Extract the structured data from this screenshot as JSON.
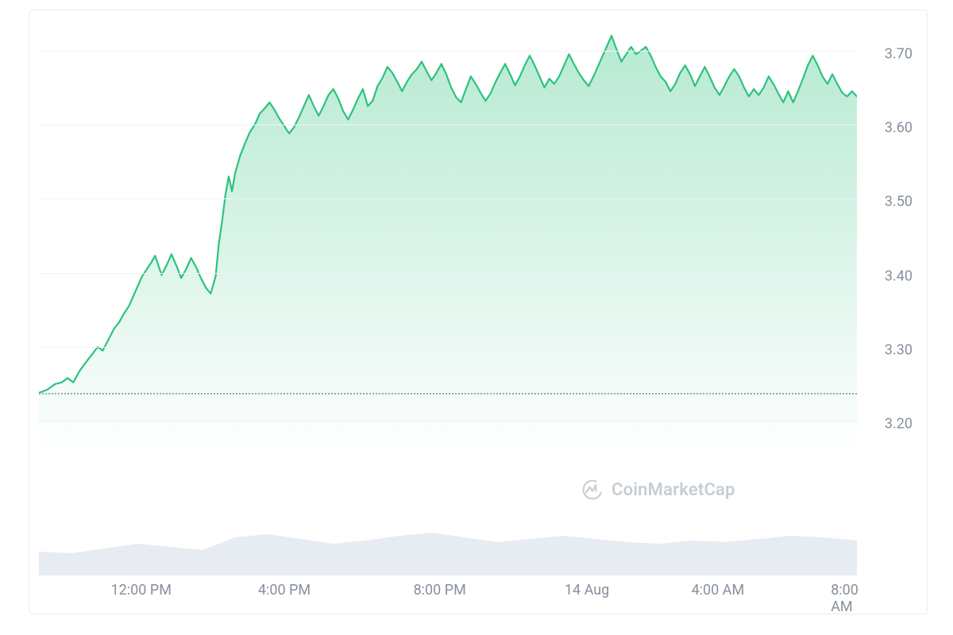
{
  "chart": {
    "type": "area",
    "background_color": "#ffffff",
    "border_color": "#e9ecef",
    "grid_color": "#f1f3f5",
    "line_color": "#2ec27e",
    "line_width": 2.2,
    "fill_top_color": "#2ec27e",
    "fill_top_opacity": 0.35,
    "fill_bottom_opacity": 0.0,
    "axis_label_color": "#86909c",
    "axis_label_fontsize": 18,
    "dotted_line_color": "#9aa3ad",
    "dotted_line_value": 3.238,
    "ylim": [
      3.15,
      3.75
    ],
    "yticks": [
      3.2,
      3.3,
      3.4,
      3.5,
      3.6,
      3.7
    ],
    "ytick_labels": [
      "3.20",
      "3.30",
      "3.40",
      "3.50",
      "3.60",
      "3.70"
    ],
    "xticks": [
      0.125,
      0.3,
      0.49,
      0.67,
      0.83,
      0.985
    ],
    "xtick_labels": [
      "12:00 PM",
      "4:00 PM",
      "8:00 PM",
      "14 Aug",
      "4:00 AM",
      "8:00 AM"
    ],
    "price_series": [
      [
        0.0,
        3.238
      ],
      [
        0.01,
        3.242
      ],
      [
        0.02,
        3.25
      ],
      [
        0.028,
        3.252
      ],
      [
        0.035,
        3.258
      ],
      [
        0.042,
        3.252
      ],
      [
        0.05,
        3.268
      ],
      [
        0.058,
        3.28
      ],
      [
        0.065,
        3.29
      ],
      [
        0.072,
        3.3
      ],
      [
        0.078,
        3.295
      ],
      [
        0.085,
        3.31
      ],
      [
        0.092,
        3.325
      ],
      [
        0.098,
        3.333
      ],
      [
        0.104,
        3.345
      ],
      [
        0.11,
        3.355
      ],
      [
        0.116,
        3.37
      ],
      [
        0.12,
        3.38
      ],
      [
        0.126,
        3.395
      ],
      [
        0.132,
        3.405
      ],
      [
        0.138,
        3.415
      ],
      [
        0.142,
        3.423
      ],
      [
        0.146,
        3.41
      ],
      [
        0.15,
        3.397
      ],
      [
        0.156,
        3.41
      ],
      [
        0.162,
        3.425
      ],
      [
        0.168,
        3.41
      ],
      [
        0.174,
        3.393
      ],
      [
        0.18,
        3.405
      ],
      [
        0.186,
        3.42
      ],
      [
        0.192,
        3.408
      ],
      [
        0.198,
        3.393
      ],
      [
        0.204,
        3.38
      ],
      [
        0.21,
        3.372
      ],
      [
        0.216,
        3.395
      ],
      [
        0.22,
        3.44
      ],
      [
        0.224,
        3.47
      ],
      [
        0.228,
        3.505
      ],
      [
        0.232,
        3.53
      ],
      [
        0.236,
        3.51
      ],
      [
        0.24,
        3.535
      ],
      [
        0.246,
        3.558
      ],
      [
        0.252,
        3.575
      ],
      [
        0.258,
        3.59
      ],
      [
        0.264,
        3.6
      ],
      [
        0.27,
        3.615
      ],
      [
        0.276,
        3.622
      ],
      [
        0.282,
        3.63
      ],
      [
        0.288,
        3.62
      ],
      [
        0.294,
        3.608
      ],
      [
        0.3,
        3.598
      ],
      [
        0.306,
        3.588
      ],
      [
        0.312,
        3.597
      ],
      [
        0.318,
        3.61
      ],
      [
        0.324,
        3.625
      ],
      [
        0.33,
        3.64
      ],
      [
        0.336,
        3.625
      ],
      [
        0.342,
        3.612
      ],
      [
        0.348,
        3.625
      ],
      [
        0.354,
        3.64
      ],
      [
        0.36,
        3.648
      ],
      [
        0.366,
        3.635
      ],
      [
        0.372,
        3.618
      ],
      [
        0.378,
        3.607
      ],
      [
        0.384,
        3.62
      ],
      [
        0.39,
        3.635
      ],
      [
        0.396,
        3.648
      ],
      [
        0.402,
        3.625
      ],
      [
        0.408,
        3.632
      ],
      [
        0.414,
        3.652
      ],
      [
        0.42,
        3.663
      ],
      [
        0.426,
        3.678
      ],
      [
        0.432,
        3.67
      ],
      [
        0.438,
        3.658
      ],
      [
        0.444,
        3.645
      ],
      [
        0.45,
        3.658
      ],
      [
        0.456,
        3.668
      ],
      [
        0.462,
        3.675
      ],
      [
        0.468,
        3.685
      ],
      [
        0.474,
        3.672
      ],
      [
        0.48,
        3.66
      ],
      [
        0.486,
        3.67
      ],
      [
        0.492,
        3.682
      ],
      [
        0.498,
        3.668
      ],
      [
        0.504,
        3.65
      ],
      [
        0.51,
        3.637
      ],
      [
        0.516,
        3.63
      ],
      [
        0.522,
        3.648
      ],
      [
        0.528,
        3.665
      ],
      [
        0.534,
        3.655
      ],
      [
        0.54,
        3.643
      ],
      [
        0.546,
        3.632
      ],
      [
        0.552,
        3.642
      ],
      [
        0.558,
        3.657
      ],
      [
        0.564,
        3.67
      ],
      [
        0.57,
        3.682
      ],
      [
        0.576,
        3.668
      ],
      [
        0.582,
        3.653
      ],
      [
        0.588,
        3.665
      ],
      [
        0.594,
        3.68
      ],
      [
        0.6,
        3.693
      ],
      [
        0.606,
        3.68
      ],
      [
        0.612,
        3.665
      ],
      [
        0.618,
        3.65
      ],
      [
        0.624,
        3.662
      ],
      [
        0.63,
        3.655
      ],
      [
        0.636,
        3.665
      ],
      [
        0.642,
        3.68
      ],
      [
        0.648,
        3.695
      ],
      [
        0.654,
        3.682
      ],
      [
        0.66,
        3.67
      ],
      [
        0.666,
        3.66
      ],
      [
        0.672,
        3.652
      ],
      [
        0.678,
        3.665
      ],
      [
        0.684,
        3.68
      ],
      [
        0.69,
        3.695
      ],
      [
        0.696,
        3.71
      ],
      [
        0.7,
        3.72
      ],
      [
        0.706,
        3.702
      ],
      [
        0.712,
        3.685
      ],
      [
        0.718,
        3.695
      ],
      [
        0.724,
        3.705
      ],
      [
        0.73,
        3.695
      ],
      [
        0.736,
        3.7
      ],
      [
        0.742,
        3.705
      ],
      [
        0.748,
        3.693
      ],
      [
        0.754,
        3.678
      ],
      [
        0.76,
        3.665
      ],
      [
        0.766,
        3.658
      ],
      [
        0.772,
        3.645
      ],
      [
        0.778,
        3.655
      ],
      [
        0.784,
        3.67
      ],
      [
        0.79,
        3.68
      ],
      [
        0.796,
        3.668
      ],
      [
        0.802,
        3.652
      ],
      [
        0.808,
        3.665
      ],
      [
        0.814,
        3.678
      ],
      [
        0.82,
        3.665
      ],
      [
        0.826,
        3.65
      ],
      [
        0.832,
        3.64
      ],
      [
        0.838,
        3.652
      ],
      [
        0.844,
        3.665
      ],
      [
        0.85,
        3.675
      ],
      [
        0.856,
        3.665
      ],
      [
        0.862,
        3.65
      ],
      [
        0.868,
        3.638
      ],
      [
        0.874,
        3.648
      ],
      [
        0.88,
        3.64
      ],
      [
        0.886,
        3.65
      ],
      [
        0.892,
        3.665
      ],
      [
        0.898,
        3.655
      ],
      [
        0.904,
        3.642
      ],
      [
        0.91,
        3.63
      ],
      [
        0.916,
        3.645
      ],
      [
        0.922,
        3.63
      ],
      [
        0.928,
        3.645
      ],
      [
        0.934,
        3.662
      ],
      [
        0.94,
        3.68
      ],
      [
        0.946,
        3.693
      ],
      [
        0.952,
        3.68
      ],
      [
        0.958,
        3.665
      ],
      [
        0.964,
        3.655
      ],
      [
        0.97,
        3.668
      ],
      [
        0.976,
        3.655
      ],
      [
        0.982,
        3.643
      ],
      [
        0.988,
        3.638
      ],
      [
        0.994,
        3.645
      ],
      [
        1.0,
        3.638
      ]
    ]
  },
  "volume": {
    "type": "area",
    "fill_color": "#e7ebf2",
    "fill_opacity": 1.0,
    "baseline": 0,
    "max": 1.0,
    "series": [
      [
        0.0,
        0.3
      ],
      [
        0.04,
        0.28
      ],
      [
        0.08,
        0.34
      ],
      [
        0.12,
        0.4
      ],
      [
        0.16,
        0.36
      ],
      [
        0.2,
        0.32
      ],
      [
        0.24,
        0.48
      ],
      [
        0.28,
        0.52
      ],
      [
        0.32,
        0.46
      ],
      [
        0.36,
        0.4
      ],
      [
        0.4,
        0.44
      ],
      [
        0.44,
        0.5
      ],
      [
        0.48,
        0.54
      ],
      [
        0.52,
        0.48
      ],
      [
        0.56,
        0.42
      ],
      [
        0.6,
        0.46
      ],
      [
        0.64,
        0.5
      ],
      [
        0.68,
        0.46
      ],
      [
        0.72,
        0.42
      ],
      [
        0.76,
        0.4
      ],
      [
        0.8,
        0.44
      ],
      [
        0.84,
        0.42
      ],
      [
        0.88,
        0.46
      ],
      [
        0.92,
        0.5
      ],
      [
        0.96,
        0.48
      ],
      [
        1.0,
        0.44
      ]
    ]
  },
  "watermark": {
    "text": "CoinMarketCap",
    "color": "#c8cdd4",
    "fontsize": 22
  }
}
